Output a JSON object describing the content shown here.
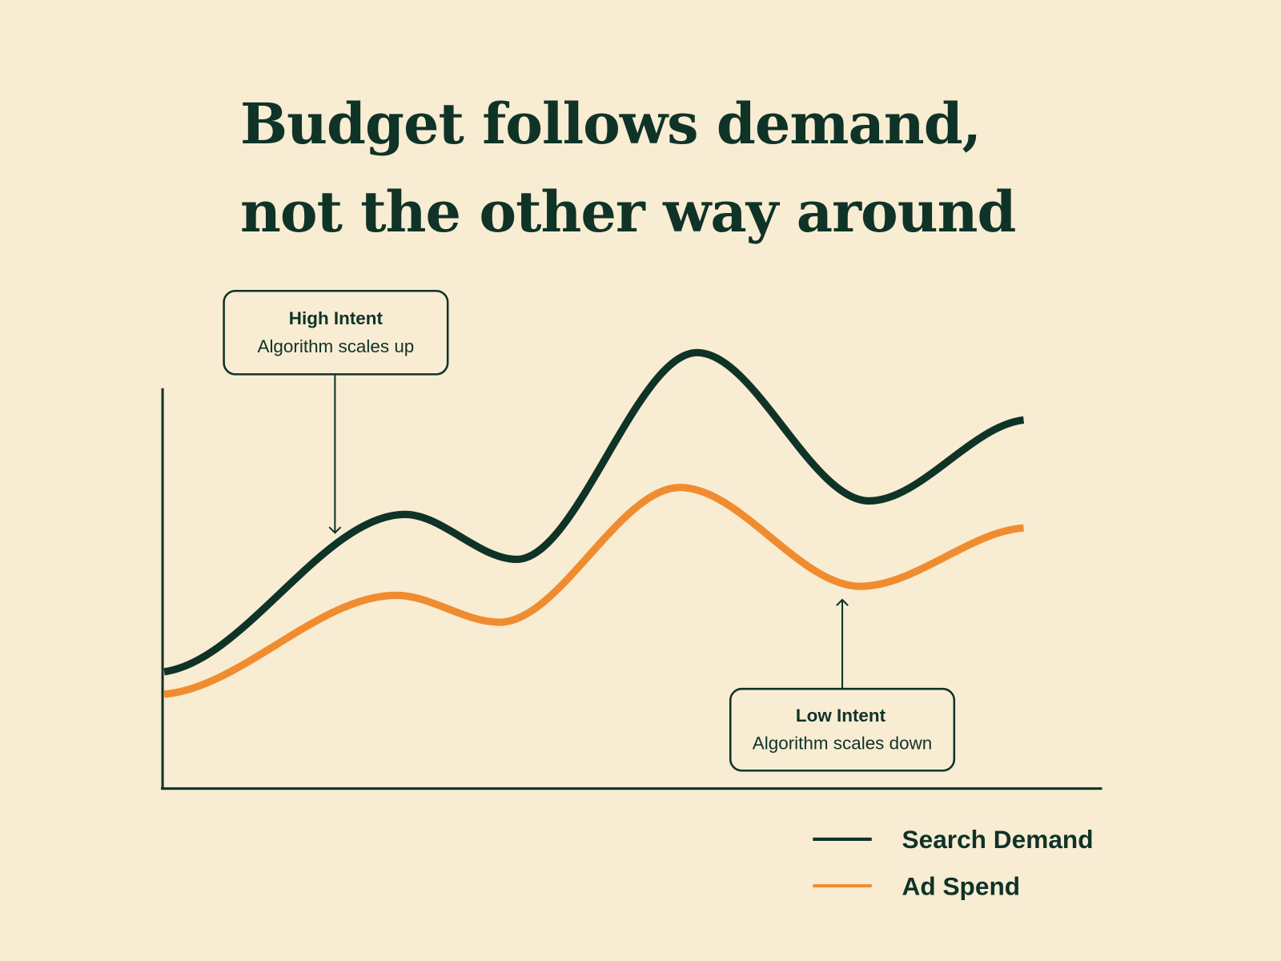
{
  "chart_data": {
    "type": "line",
    "title": "Budget follows demand, not the other way around",
    "xlim": [
      0,
      100
    ],
    "ylim": [
      0,
      100
    ],
    "series": [
      {
        "name": "Search Demand",
        "color": "#0f3327",
        "x": [
          0,
          28,
          41,
          62,
          82,
          100
        ],
        "values": [
          26,
          61,
          51,
          97,
          64,
          82
        ]
      },
      {
        "name": "Ad Spend",
        "color": "#f08c30",
        "x": [
          0,
          27,
          39,
          60,
          81,
          100
        ],
        "values": [
          21,
          43,
          37,
          67,
          45,
          58
        ]
      }
    ],
    "annotations": [
      {
        "title": "High Intent",
        "text": "Algorithm scales up"
      },
      {
        "title": "Low Intent",
        "text": "Algorithm scales down"
      }
    ]
  }
}
